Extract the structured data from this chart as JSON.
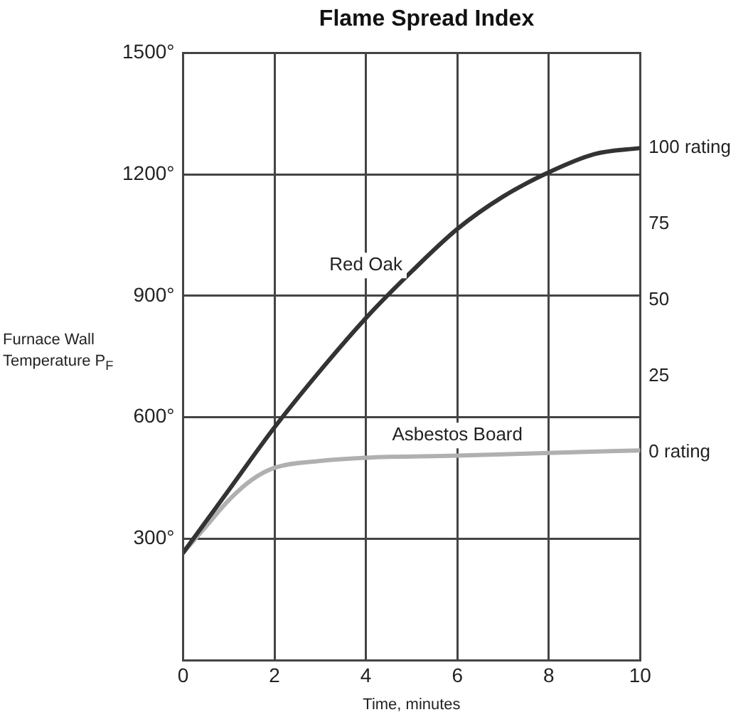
{
  "chart_data": {
    "type": "line",
    "title": "Flame Spread Index",
    "xlabel": "Time, minutes",
    "ylabel": "Furnace Wall Temperature P$_{F}$",
    "xlim": [
      0,
      10
    ],
    "xticks": [
      0,
      2,
      4,
      6,
      8,
      10
    ],
    "ylim": [
      0,
      1500
    ],
    "yticks": [
      {
        "value": 300,
        "label": "300°"
      },
      {
        "value": 600,
        "label": "600°"
      },
      {
        "value": 900,
        "label": "900°"
      },
      {
        "value": 1200,
        "label": "1200°"
      },
      {
        "value": 1500,
        "label": "1500°"
      }
    ],
    "y2lim": [
      -68,
      131
    ],
    "y2ticks": [
      {
        "value": 0,
        "label": "0 rating"
      },
      25,
      50,
      75,
      {
        "value": 100,
        "label": "100 rating"
      }
    ],
    "grid": true,
    "legend": false,
    "marker": "none",
    "line_style": "solid",
    "series": [
      {
        "name": "Red Oak",
        "color": "#333333",
        "x": [
          0,
          1,
          2,
          3,
          4,
          5,
          6,
          7,
          8,
          9,
          10
        ],
        "values": [
          265,
          420,
          575,
          715,
          845,
          960,
          1065,
          1145,
          1205,
          1250,
          1265
        ]
      },
      {
        "name": "Asbestos Board",
        "color": "#b0b0b0",
        "x": [
          0,
          0.5,
          1,
          1.5,
          2,
          3,
          4,
          6,
          8,
          10
        ],
        "values": [
          265,
          330,
          395,
          445,
          475,
          492,
          500,
          505,
          512,
          518
        ]
      }
    ]
  }
}
